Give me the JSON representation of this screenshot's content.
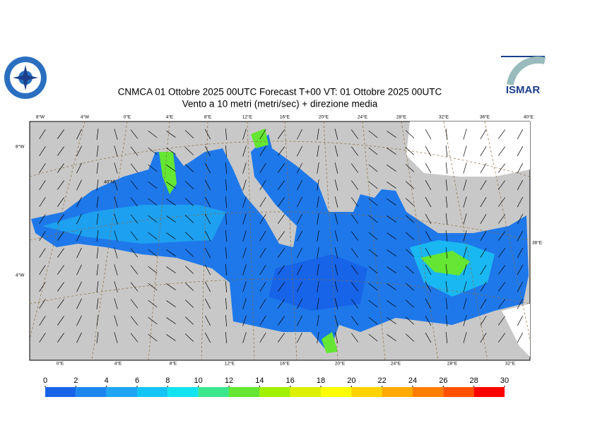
{
  "header": {
    "title_line1": "CNMCA 01  Ottobre  2025 00UTC Forecast T+00 VT: 01  Ottobre  2025 00UTC",
    "title_line2": "Vento a 10 metri (metri/sec) + direzione media",
    "logo_right": "ISMAR"
  },
  "map": {
    "lon_labels_top": [
      "8°W",
      "4°W",
      "0°E",
      "4°E",
      "8°E",
      "12°E",
      "16°E",
      "20°E",
      "24°E",
      "28°E",
      "32°E",
      "36°E",
      "40°E"
    ],
    "lon_labels_bottom": [
      "0°E",
      "4°E",
      "8°E",
      "12°E",
      "16°E",
      "20°E",
      "24°E",
      "28°E",
      "32°E"
    ],
    "lat_labels": [
      "8°W",
      "40°N",
      "4°W",
      "38°E"
    ]
  },
  "colorbar": {
    "ticks": [
      0,
      2,
      4,
      6,
      8,
      10,
      12,
      14,
      16,
      18,
      20,
      22,
      24,
      26,
      28,
      30
    ],
    "colors": [
      "#1764e8",
      "#1c86ef",
      "#1ea6f2",
      "#14c4f4",
      "#10e4f0",
      "#3ce68c",
      "#64e632",
      "#a0f000",
      "#dcf000",
      "#ffff00",
      "#ffd200",
      "#ffaa00",
      "#ff7d00",
      "#ff5000",
      "#ff0000",
      "#ff1496"
    ]
  }
}
